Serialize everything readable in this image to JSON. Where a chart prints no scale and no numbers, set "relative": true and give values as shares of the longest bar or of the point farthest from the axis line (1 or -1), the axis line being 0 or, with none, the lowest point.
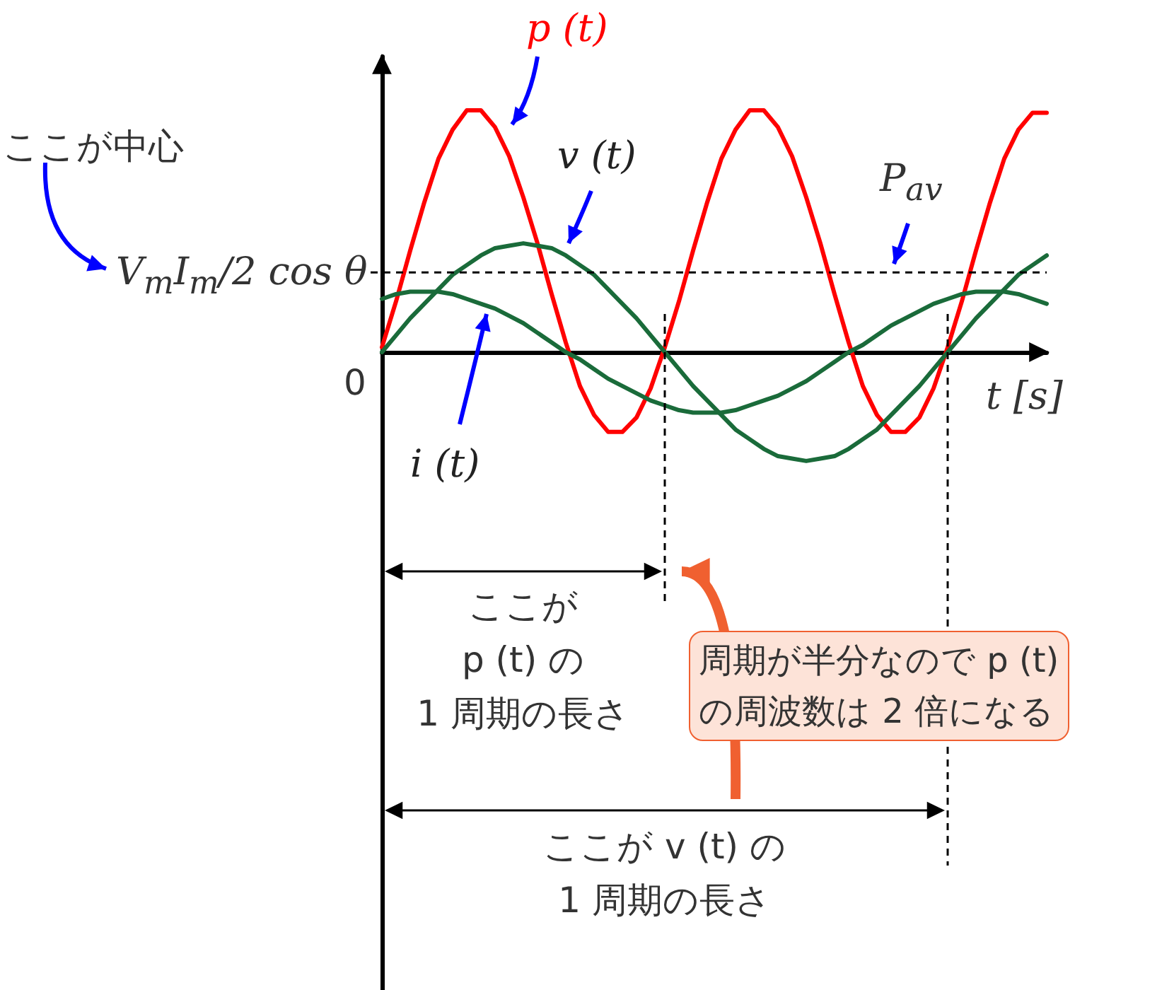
{
  "chart_data": {
    "type": "line",
    "relative": true,
    "xlabel": "t [s]",
    "marker": "none",
    "line_style": "solid",
    "legend": false,
    "grid": false,
    "categories": [
      null,
      null,
      null,
      null,
      null,
      null,
      null,
      null,
      null,
      null,
      null,
      null,
      null,
      null,
      null,
      null,
      null,
      null,
      null,
      null,
      null,
      null,
      null,
      null,
      null,
      null,
      null,
      null,
      null,
      null,
      null,
      null,
      null,
      null,
      null,
      null,
      null,
      null,
      null,
      null,
      null,
      null,
      null,
      null,
      null,
      null,
      null,
      null
    ],
    "series": [
      {
        "name": "p (t)",
        "color": "#ff0000",
        "values": [
          0.02,
          0.21,
          0.42,
          0.62,
          0.8,
          0.92,
          1,
          1,
          0.93,
          0.81,
          0.64,
          0.45,
          0.24,
          0.04,
          -0.14,
          -0.26,
          -0.33,
          -0.33,
          -0.27,
          -0.15,
          0.02,
          0.21,
          0.42,
          0.62,
          0.8,
          0.92,
          1,
          1,
          0.93,
          0.81,
          0.64,
          0.45,
          0.24,
          0.04,
          -0.14,
          -0.26,
          -0.33,
          -0.33,
          -0.27,
          -0.15,
          0.02,
          0.21,
          0.42,
          0.62,
          0.8,
          0.92,
          0.99,
          0.99
        ]
      },
      {
        "name": "v (t)",
        "color": "#1a6b3a",
        "values": [
          0,
          0.07,
          0.14,
          0.2,
          0.26,
          0.32,
          0.36,
          0.4,
          0.43,
          0.44,
          0.45,
          0.44,
          0.43,
          0.4,
          0.36,
          0.32,
          0.26,
          0.2,
          0.14,
          0.07,
          0,
          -0.07,
          -0.14,
          -0.2,
          -0.26,
          -0.32,
          -0.36,
          -0.4,
          -0.43,
          -0.44,
          -0.45,
          -0.44,
          -0.43,
          -0.4,
          -0.36,
          -0.32,
          -0.26,
          -0.2,
          -0.14,
          -0.07,
          0,
          0.07,
          0.14,
          0.2,
          0.26,
          0.32,
          0.36,
          0.4
        ]
      },
      {
        "name": "i (t)",
        "color": "#1a6b3a",
        "values": [
          0.22,
          0.24,
          0.25,
          0.25,
          0.25,
          0.24,
          0.22,
          0.2,
          0.18,
          0.15,
          0.12,
          0.08,
          0.04,
          0,
          -0.03,
          -0.07,
          -0.11,
          -0.14,
          -0.17,
          -0.2,
          -0.22,
          -0.24,
          -0.25,
          -0.25,
          -0.25,
          -0.24,
          -0.22,
          -0.2,
          -0.18,
          -0.15,
          -0.12,
          -0.08,
          -0.04,
          0,
          0.03,
          0.07,
          0.11,
          0.14,
          0.17,
          0.2,
          0.22,
          0.24,
          0.25,
          0.25,
          0.25,
          0.24,
          0.22,
          0.2
        ]
      }
    ],
    "ref_lines": [
      {
        "axis": "y",
        "value": 0.33,
        "label": "P$_{av}$",
        "line_style": "dashed"
      }
    ],
    "annotations": [
      "ここが中心",
      "V$_{m}$I$_{m}$/2 cos θ",
      "0",
      "ここが\np (t) の\n1 周期の長さ",
      "周期が半分なので p (t)\nの周波数は 2 倍になる",
      "ここが v (t) の\n1 周期の長さ"
    ]
  }
}
